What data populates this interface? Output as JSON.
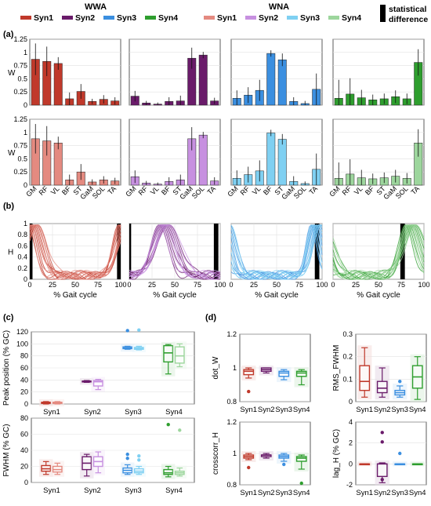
{
  "legend": {
    "wwa_title": "WWA",
    "wna_title": "WNA",
    "wwa_items": [
      {
        "label": "Syn1",
        "color": "#c0392b"
      },
      {
        "label": "Syn2",
        "color": "#6a1b6a"
      },
      {
        "label": "Syn3",
        "color": "#3b8fe0"
      },
      {
        "label": "Syn4",
        "color": "#2e9e2e"
      }
    ],
    "wna_items": [
      {
        "label": "Syn1",
        "color": "#e48a80"
      },
      {
        "label": "Syn2",
        "color": "#c790e0"
      },
      {
        "label": "Syn3",
        "color": "#7fd0f2"
      },
      {
        "label": "Syn4",
        "color": "#9dd69d"
      }
    ],
    "sig_label_line1": "statistical",
    "sig_label_line2": "difference"
  },
  "panel_labels": {
    "a": "(a)",
    "b": "(b)",
    "c": "(c)",
    "d": "(d)"
  },
  "colors": {
    "wwa": [
      "#c0392b",
      "#6a1b6a",
      "#3b8fe0",
      "#2e9e2e"
    ],
    "wna": [
      "#e48a80",
      "#c790e0",
      "#7fd0f2",
      "#9dd69d"
    ],
    "sig": "#000000"
  },
  "chart_data": [
    {
      "id": "a-weights",
      "type": "bar",
      "ylabel": "W",
      "categories": [
        "GM",
        "RF",
        "VL",
        "BF",
        "ST",
        "GaM",
        "SOL",
        "TA"
      ],
      "ylim": [
        0,
        1.25
      ],
      "yticks": [
        "0",
        "0.25",
        "0.5",
        "0.75",
        "1",
        "1.25"
      ],
      "grid": true,
      "rows": [
        {
          "group": "WWA",
          "series": [
            {
              "name": "Syn1",
              "values": [
                0.87,
                0.83,
                0.79,
                0.12,
                0.26,
                0.07,
                0.11,
                0.08
              ],
              "err": [
                0.3,
                0.28,
                0.12,
                0.12,
                0.14,
                0.05,
                0.08,
                0.07
              ]
            },
            {
              "name": "Syn2",
              "values": [
                0.17,
                0.04,
                0.02,
                0.07,
                0.08,
                0.89,
                0.95,
                0.08
              ],
              "err": [
                0.1,
                0.04,
                0.03,
                0.08,
                0.1,
                0.2,
                0.06,
                0.06
              ]
            },
            {
              "name": "Syn3",
              "values": [
                0.13,
                0.19,
                0.28,
                0.98,
                0.86,
                0.07,
                0.03,
                0.3
              ],
              "err": [
                0.15,
                0.15,
                0.2,
                0.06,
                0.12,
                0.08,
                0.05,
                0.3
              ]
            },
            {
              "name": "Syn4",
              "values": [
                0.13,
                0.21,
                0.14,
                0.1,
                0.12,
                0.16,
                0.12,
                0.81
              ],
              "err": [
                0.35,
                0.3,
                0.15,
                0.1,
                0.1,
                0.12,
                0.1,
                0.25
              ]
            }
          ]
        },
        {
          "group": "WNA",
          "series": [
            {
              "name": "Syn1",
              "values": [
                0.88,
                0.84,
                0.8,
                0.1,
                0.25,
                0.06,
                0.1,
                0.08
              ],
              "err": [
                0.28,
                0.28,
                0.12,
                0.1,
                0.15,
                0.05,
                0.07,
                0.06
              ]
            },
            {
              "name": "Syn2",
              "values": [
                0.16,
                0.04,
                0.02,
                0.07,
                0.1,
                0.88,
                0.95,
                0.08
              ],
              "err": [
                0.12,
                0.04,
                0.03,
                0.08,
                0.1,
                0.22,
                0.06,
                0.07
              ]
            },
            {
              "name": "Syn3",
              "values": [
                0.13,
                0.2,
                0.27,
                0.99,
                0.87,
                0.07,
                0.03,
                0.3
              ],
              "err": [
                0.15,
                0.15,
                0.2,
                0.06,
                0.1,
                0.1,
                0.04,
                0.3
              ]
            },
            {
              "name": "Syn4",
              "values": [
                0.13,
                0.21,
                0.14,
                0.12,
                0.14,
                0.17,
                0.13,
                0.8
              ],
              "err": [
                0.3,
                0.28,
                0.15,
                0.1,
                0.1,
                0.12,
                0.1,
                0.26
              ]
            }
          ]
        }
      ]
    },
    {
      "id": "b-activation",
      "type": "line",
      "ylabel": "H",
      "xlabel": "% Gait cycle",
      "xlim": [
        0,
        100
      ],
      "ylim": [
        0,
        1
      ],
      "xticks": [
        "0",
        "25",
        "50",
        "75",
        "100"
      ],
      "yticks": [
        "0",
        "0.2",
        "0.4",
        "0.6",
        "0.8",
        "1"
      ],
      "grid": true,
      "series": [
        {
          "name": "Syn1",
          "peak": 3,
          "width": 20,
          "sig": [
            [
              0,
              3
            ],
            [
              96,
              100
            ]
          ]
        },
        {
          "name": "Syn2",
          "peak": 38,
          "width": 26,
          "sig": [
            [
              0,
              2
            ],
            [
              93,
              98
            ]
          ]
        },
        {
          "name": "Syn3",
          "peak": 93,
          "width": 16,
          "sig": [
            [
              92,
              97
            ]
          ]
        },
        {
          "name": "Syn4",
          "peak": 85,
          "width": 22,
          "sig": [
            [
              74,
              79
            ]
          ]
        }
      ]
    },
    {
      "id": "c-peak",
      "type": "box",
      "ylabel": "Peak position (% GC)",
      "categories": [
        "Syn1",
        "Syn2",
        "Syn3",
        "Syn4"
      ],
      "ylim": [
        0,
        120
      ],
      "yticks": [
        "0",
        "20",
        "40",
        "60",
        "80",
        "100",
        "120"
      ],
      "groups": [
        {
          "name": "WWA",
          "boxes": [
            [
              0,
              1,
              2,
              3,
              4
            ],
            [
              36,
              37,
              38,
              38,
              39
            ],
            [
              91,
              92,
              93,
              95,
              96
            ],
            [
              50,
              70,
              85,
              97,
              99
            ]
          ],
          "outliers": [
            [],
            [],
            [
              122
            ],
            []
          ]
        },
        {
          "name": "WNA",
          "boxes": [
            [
              0,
              1,
              2,
              3,
              4
            ],
            [
              24,
              30,
              37,
              39,
              41
            ],
            [
              90,
              91,
              93,
              94,
              96
            ],
            [
              62,
              68,
              80,
              95,
              100
            ]
          ],
          "outliers": [
            [],
            [],
            [
              123
            ],
            []
          ]
        }
      ]
    },
    {
      "id": "c-fwhm",
      "type": "box",
      "ylabel": "FWHM (% GC)",
      "categories": [
        "Syn1",
        "Syn2",
        "Syn3",
        "Syn4"
      ],
      "ylim": [
        0,
        80
      ],
      "yticks": [
        "0",
        "20",
        "40",
        "60",
        "80"
      ],
      "groups": [
        {
          "name": "WWA",
          "boxes": [
            [
              10,
              14,
              17,
              21,
              26
            ],
            [
              8,
              16,
              24,
              32,
              35
            ],
            [
              10,
              12,
              15,
              18,
              22
            ],
            [
              7,
              10,
              12,
              16,
              20
            ]
          ],
          "outliers": [
            [],
            [],
            [
              30,
              35
            ],
            [
              72
            ]
          ]
        },
        {
          "name": "WNA",
          "boxes": [
            [
              10,
              13,
              16,
              20,
              24
            ],
            [
              12,
              20,
              26,
              32,
              38
            ],
            [
              10,
              12,
              14,
              17,
              20
            ],
            [
              8,
              10,
              12,
              14,
              18
            ]
          ],
          "outliers": [
            [],
            [],
            [
              28,
              33
            ],
            [
              65
            ]
          ]
        }
      ]
    },
    {
      "id": "d-dotw",
      "type": "box",
      "ylabel": "dot_W",
      "categories": [
        "Syn1",
        "Syn2",
        "Syn3",
        "Syn4"
      ],
      "ylim": [
        0.8,
        1.2
      ],
      "yticks": [
        "0.8",
        "1",
        "1.2"
      ],
      "boxes": [
        [
          0.94,
          0.96,
          0.98,
          0.99,
          1.0
        ],
        [
          0.97,
          0.98,
          0.99,
          1.0,
          1.0
        ],
        [
          0.93,
          0.95,
          0.97,
          0.98,
          0.99
        ],
        [
          0.9,
          0.95,
          0.97,
          0.98,
          0.99
        ]
      ],
      "outliers": [
        [
          0.86
        ],
        [],
        [],
        []
      ]
    },
    {
      "id": "d-rmsfwhm",
      "type": "box",
      "ylabel": "RMS_FWHM",
      "categories": [
        "Syn1",
        "Syn2",
        "Syn3",
        "Syn4"
      ],
      "ylim": [
        0,
        0.3
      ],
      "yticks": [
        "0",
        "0.1",
        "0.2",
        "0.3"
      ],
      "boxes": [
        [
          0.02,
          0.05,
          0.09,
          0.16,
          0.24
        ],
        [
          0.02,
          0.04,
          0.06,
          0.09,
          0.15
        ],
        [
          0.02,
          0.03,
          0.04,
          0.05,
          0.07
        ],
        [
          0.01,
          0.06,
          0.11,
          0.16,
          0.2
        ]
      ],
      "outliers": [
        [],
        [],
        [
          0.09
        ],
        []
      ]
    },
    {
      "id": "d-crosscorr",
      "type": "box",
      "ylabel": "crosscorr_H",
      "categories": [
        "Syn1",
        "Syn2",
        "Syn3",
        "Syn4"
      ],
      "ylim": [
        0.8,
        1.2
      ],
      "yticks": [
        "0.8",
        "1",
        "1.2"
      ],
      "boxes": [
        [
          0.96,
          0.97,
          0.98,
          0.99,
          1.0
        ],
        [
          0.97,
          0.98,
          0.99,
          0.99,
          1.0
        ],
        [
          0.95,
          0.97,
          0.98,
          0.99,
          1.0
        ],
        [
          0.9,
          0.95,
          0.97,
          0.98,
          0.99
        ]
      ],
      "outliers": [
        [
          0.91
        ],
        [],
        [
          0.93
        ],
        [
          0.81
        ]
      ]
    },
    {
      "id": "d-lagh",
      "type": "box",
      "ylabel": "lag_H (% GC)",
      "categories": [
        "Syn1",
        "Syn2",
        "Syn3",
        "Syn4"
      ],
      "ylim": [
        -2,
        4
      ],
      "yticks": [
        "-2",
        "0",
        "2",
        "4"
      ],
      "boxes": [
        [
          0,
          0,
          0,
          0,
          0
        ],
        [
          -1.8,
          -1.2,
          0,
          0,
          0.1
        ],
        [
          0,
          0,
          0,
          0,
          0
        ],
        [
          0,
          0,
          0,
          0,
          0
        ]
      ],
      "outliers": [
        [],
        [
          2.1,
          3.0,
          -1.5
        ],
        [
          1.0
        ],
        []
      ]
    }
  ]
}
